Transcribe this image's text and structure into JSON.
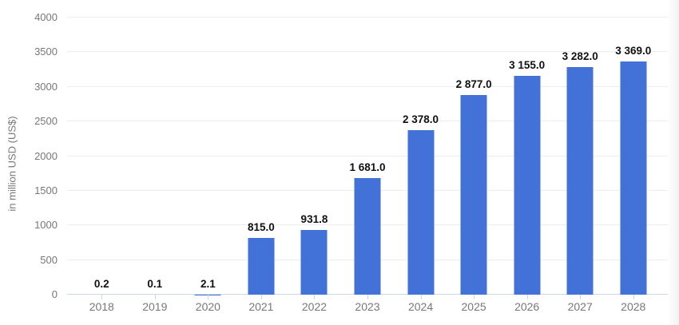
{
  "chart_data": {
    "type": "bar",
    "title": "",
    "xlabel": "",
    "ylabel": "in million USD (US$)",
    "categories": [
      "2018",
      "2019",
      "2020",
      "2021",
      "2022",
      "2023",
      "2024",
      "2025",
      "2026",
      "2027",
      "2028"
    ],
    "values": [
      0.2,
      0.1,
      2.1,
      815.0,
      931.8,
      1681.0,
      2378.0,
      2877.0,
      3155.0,
      3282.0,
      3369.0
    ],
    "value_labels": [
      "0.2",
      "0.1",
      "2.1",
      "815.0",
      "931.8",
      "1 681.0",
      "2 378.0",
      "2 877.0",
      "3 155.0",
      "3 282.0",
      "3 369.0"
    ],
    "yticks": [
      0,
      500,
      1000,
      1500,
      2000,
      2500,
      3000,
      3500,
      4000
    ],
    "ylim": [
      0,
      4000
    ],
    "grid": true,
    "legend": false,
    "colors": {
      "bar": "#4272d8",
      "gridline": "#ededef",
      "axis_line": "#ccd6e4",
      "tick_mark": "#ccd6e4",
      "tick_label": "#75787b",
      "value_label": "#111111"
    }
  }
}
